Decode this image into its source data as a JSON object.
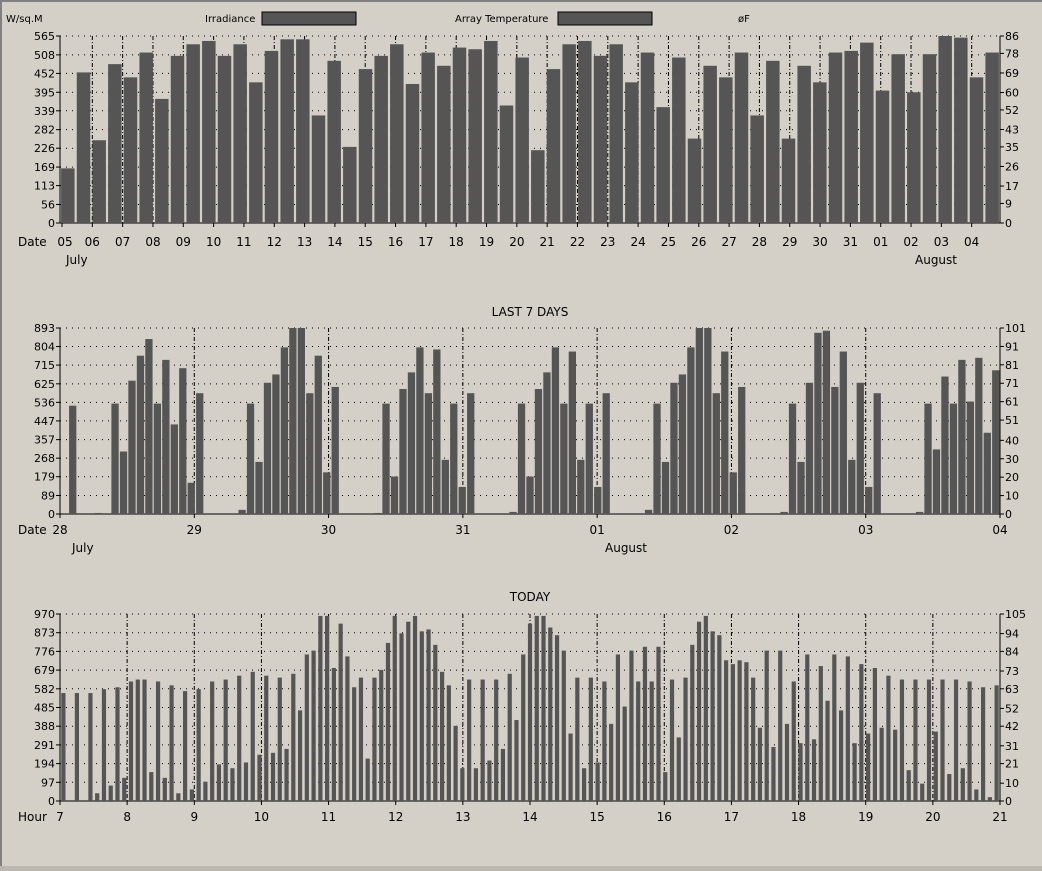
{
  "legend": {
    "left_unit": "W/sq.M",
    "irradiance_label": "Irradiance",
    "array_temp_label": "Array Temperature",
    "right_unit": "øF"
  },
  "colors": {
    "bar": "#555555",
    "background": "#d4d0c8",
    "grid": "#000000"
  },
  "chart_data": [
    {
      "type": "bar",
      "title": "",
      "xlabel": "Date",
      "x_ticks": [
        "05",
        "06",
        "07",
        "08",
        "09",
        "10",
        "11",
        "12",
        "13",
        "14",
        "15",
        "16",
        "17",
        "18",
        "19",
        "20",
        "21",
        "22",
        "23",
        "24",
        "25",
        "26",
        "27",
        "28",
        "29",
        "30",
        "31",
        "01",
        "02",
        "03",
        "04"
      ],
      "month_labels": [
        {
          "label": "July",
          "at": "05"
        },
        {
          "label": "August",
          "at": "01"
        }
      ],
      "ylim": [
        0,
        565
      ],
      "y_ticks": [
        0,
        56,
        113,
        169,
        226,
        282,
        339,
        395,
        452,
        508,
        565
      ],
      "y2lim": [
        0,
        86
      ],
      "y2_ticks": [
        0,
        9,
        17,
        26,
        35,
        43,
        52,
        60,
        69,
        78,
        86
      ],
      "grid": true,
      "series": [
        {
          "name": "Irradiance",
          "values": [
            165,
            455,
            250,
            480,
            440,
            515,
            375,
            505,
            540,
            550,
            505,
            540,
            425,
            520,
            555,
            555,
            325,
            490,
            230,
            465,
            505,
            540,
            420,
            515,
            475,
            530,
            525,
            550,
            355,
            500,
            220,
            465,
            540,
            550,
            505,
            540,
            425,
            515,
            350,
            500,
            255,
            475,
            440,
            515,
            325,
            490,
            255,
            475,
            425,
            515,
            520,
            545,
            400,
            510,
            395,
            510,
            565,
            560,
            440,
            515
          ]
        }
      ]
    },
    {
      "type": "bar",
      "title": "LAST 7 DAYS",
      "xlabel": "Date",
      "x_ticks": [
        "28",
        "29",
        "30",
        "31",
        "01",
        "02",
        "03",
        "04"
      ],
      "month_labels": [
        {
          "label": "July",
          "at": "28"
        },
        {
          "label": "August",
          "at": "01"
        }
      ],
      "ylim": [
        0,
        893
      ],
      "y_ticks": [
        0,
        89,
        179,
        268,
        357,
        447,
        536,
        625,
        715,
        804,
        893
      ],
      "y2lim": [
        0,
        101
      ],
      "y2_ticks": [
        0,
        10,
        20,
        30,
        40,
        51,
        61,
        71,
        81,
        91,
        101
      ],
      "grid": true,
      "series": [
        {
          "name": "Irradiance",
          "values": [
            0,
            520,
            0,
            0,
            5,
            0,
            530,
            300,
            640,
            760,
            840,
            530,
            740,
            430,
            700,
            150,
            580,
            0,
            0,
            0,
            0,
            20,
            530,
            250,
            630,
            670,
            800,
            893,
            893,
            580,
            760,
            200,
            610,
            0,
            0,
            0,
            0,
            5,
            530,
            180,
            600,
            680,
            800,
            580,
            790,
            260,
            530,
            130,
            580,
            0,
            0,
            0,
            0,
            10,
            530,
            180,
            600,
            680,
            800,
            530,
            780,
            260,
            530,
            130,
            580,
            0,
            0,
            0,
            0,
            20,
            530,
            250,
            630,
            670,
            800,
            893,
            893,
            580,
            780,
            200,
            610,
            0,
            0,
            0,
            0,
            10,
            530,
            250,
            630,
            870,
            880,
            610,
            780,
            260,
            630,
            130,
            580,
            0,
            0,
            0,
            0,
            10,
            530,
            310,
            660,
            530,
            740,
            540,
            750,
            390,
            690
          ]
        }
      ]
    },
    {
      "type": "bar",
      "title": "TODAY",
      "xlabel": "Hour",
      "x_ticks": [
        "7",
        "8",
        "9",
        "10",
        "11",
        "12",
        "13",
        "14",
        "15",
        "16",
        "17",
        "18",
        "19",
        "20",
        "21"
      ],
      "ylim": [
        0,
        970
      ],
      "y_ticks": [
        0,
        97,
        194,
        291,
        388,
        485,
        582,
        679,
        776,
        873,
        970
      ],
      "y2lim": [
        0,
        105
      ],
      "y2_ticks": [
        0,
        10,
        21,
        31,
        42,
        52,
        63,
        73,
        84,
        94,
        105
      ],
      "grid": true,
      "series": [
        {
          "name": "Irradiance",
          "values": [
            560,
            0,
            560,
            0,
            560,
            40,
            580,
            80,
            590,
            120,
            620,
            630,
            630,
            150,
            620,
            120,
            600,
            40,
            570,
            60,
            580,
            100,
            620,
            190,
            630,
            170,
            650,
            200,
            670,
            240,
            650,
            250,
            640,
            270,
            660,
            470,
            760,
            780,
            960,
            960,
            690,
            920,
            750,
            590,
            640,
            220,
            640,
            680,
            820,
            960,
            870,
            930,
            960,
            880,
            890,
            810,
            670,
            600,
            390,
            170,
            630,
            170,
            630,
            210,
            630,
            270,
            660,
            420,
            760,
            920,
            960,
            960,
            900,
            860,
            780,
            350,
            640,
            170,
            640,
            200,
            620,
            400,
            760,
            490,
            780,
            620,
            800,
            620,
            800,
            150,
            630,
            330,
            640,
            810,
            930,
            960,
            880,
            860,
            730,
            710,
            730,
            720,
            640,
            380,
            780,
            280,
            780,
            400,
            620,
            300,
            760,
            320,
            700,
            520,
            760,
            470,
            750,
            300,
            710,
            350,
            690,
            380,
            650,
            370,
            630,
            160,
            630,
            90,
            630,
            360,
            630,
            140,
            630,
            170,
            620,
            60,
            590,
            20,
            600
          ]
        }
      ]
    }
  ]
}
